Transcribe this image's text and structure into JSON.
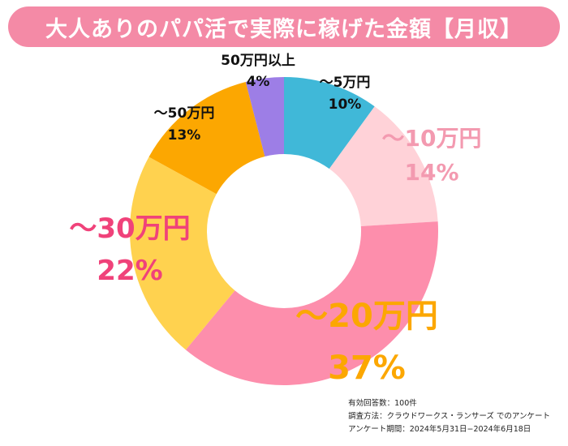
{
  "title": "大人ありのパパ活で実際に稼げた金額【月収】",
  "chart_data": {
    "type": "pie",
    "title": "大人ありのパパ活で実際に稼げた金額【月収】",
    "categories": [
      "〜5万円",
      "〜10万円",
      "〜20万円",
      "〜30万円",
      "〜50万円",
      "50万円以上"
    ],
    "values": [
      10,
      14,
      37,
      22,
      13,
      4
    ],
    "value_labels": [
      "10%",
      "14%",
      "37%",
      "22%",
      "13%",
      "4%"
    ],
    "colors": [
      "#40b8d8",
      "#ffd2d8",
      "#fd8eac",
      "#ffd24f",
      "#fca701",
      "#9d7ee6"
    ],
    "label_colors": [
      "#111111",
      "#f39ab0",
      "#fca701",
      "#f0427a",
      "#111111",
      "#111111"
    ],
    "donut": true,
    "start": "top",
    "direction": "clockwise"
  },
  "footnote": {
    "respondents": "有効回答数：100件",
    "method": "調査方法：クラウドワークス・ランサーズ でのアンケート",
    "period": "アンケート期間：2024年5月31日−2024年6月18日"
  }
}
